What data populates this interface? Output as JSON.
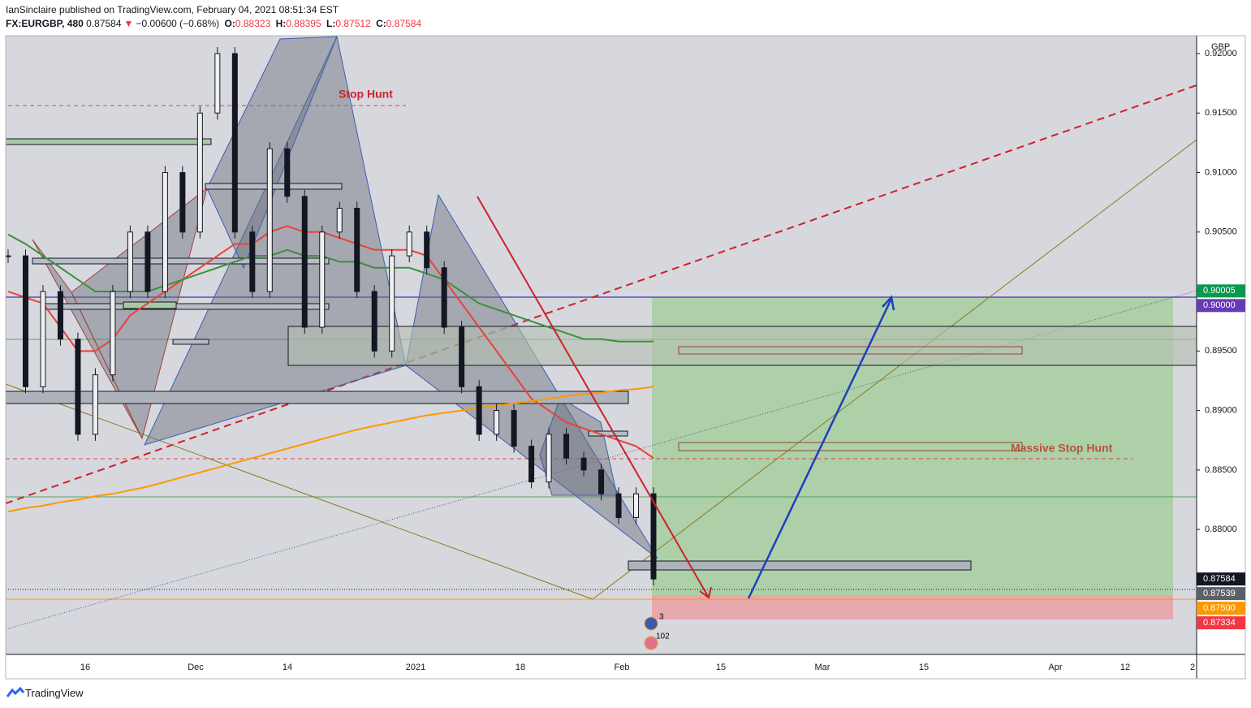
{
  "header": {
    "published": "IanSinclaire published on TradingView.com, February 04, 2021 08:51:34 EST",
    "symbol": "FX:EURGBP, 480",
    "last": "0.87584",
    "arrow": "▼",
    "change": "−0.00600 (−0.68%)",
    "o_label": "O:",
    "o": "0.88323",
    "h_label": "H:",
    "h": "0.88395",
    "l_label": "L:",
    "l": "0.87512",
    "c_label": "C:",
    "c": "0.87584"
  },
  "chart_data": {
    "type": "candlestick",
    "currency": "GBP",
    "ylim": [
      0.8695,
      0.9215
    ],
    "yticks": [
      {
        "value": 0.92,
        "label": "0.92000"
      },
      {
        "value": 0.915,
        "label": "0.91500"
      },
      {
        "value": 0.91,
        "label": "0.91000"
      },
      {
        "value": 0.905,
        "label": "0.90500"
      },
      {
        "value": 0.9,
        "label": "0.90000"
      },
      {
        "value": 0.895,
        "label": "0.89500"
      },
      {
        "value": 0.89,
        "label": "0.89000"
      },
      {
        "value": 0.885,
        "label": "0.88500"
      },
      {
        "value": 0.88,
        "label": "0.88000"
      }
    ],
    "xticks": [
      "16",
      "Dec",
      "14",
      "2021",
      "18",
      "Feb",
      "15",
      "Mar",
      "15",
      "Apr",
      "12",
      "2"
    ],
    "series": [
      {
        "name": "EURGBP close",
        "values": [
          0.903,
          0.892,
          0.9,
          0.896,
          0.888,
          0.893,
          0.9,
          0.905,
          0.9,
          0.91,
          0.905,
          0.915,
          0.92,
          0.905,
          0.9,
          0.912,
          0.908,
          0.897,
          0.905,
          0.907,
          0.9,
          0.895,
          0.903,
          0.905,
          0.902,
          0.897,
          0.892,
          0.888,
          0.89,
          0.887,
          0.884,
          0.888,
          0.886,
          0.885,
          0.883,
          0.881,
          0.883,
          0.87584
        ]
      },
      {
        "name": "MA fast",
        "color": "#e8423a",
        "values": [
          0.9,
          0.8995,
          0.899,
          0.897,
          0.895,
          0.895,
          0.896,
          0.898,
          0.899,
          0.9,
          0.901,
          0.902,
          0.903,
          0.904,
          0.904,
          0.905,
          0.9055,
          0.905,
          0.905,
          0.9045,
          0.904,
          0.9035,
          0.9035,
          0.9035,
          0.903,
          0.901,
          0.899,
          0.897,
          0.895,
          0.893,
          0.891,
          0.89,
          0.889,
          0.8885,
          0.888,
          0.8875,
          0.887,
          0.886
        ]
      },
      {
        "name": "MA mid",
        "color": "#3c8f3c",
        "values": [
          0.9048,
          0.904,
          0.903,
          0.902,
          0.901,
          0.9,
          0.9,
          0.9,
          0.9,
          0.9005,
          0.901,
          0.9015,
          0.902,
          0.9025,
          0.903,
          0.903,
          0.9035,
          0.903,
          0.903,
          0.9025,
          0.9025,
          0.902,
          0.902,
          0.902,
          0.9015,
          0.901,
          0.9,
          0.899,
          0.8985,
          0.898,
          0.8975,
          0.897,
          0.8965,
          0.896,
          0.896,
          0.8958,
          0.8958,
          0.8958
        ]
      },
      {
        "name": "MA slow",
        "color": "#ff9800",
        "values": [
          0.8815,
          0.8818,
          0.882,
          0.8823,
          0.8825,
          0.8828,
          0.883,
          0.8833,
          0.8836,
          0.884,
          0.8844,
          0.8848,
          0.8852,
          0.8856,
          0.886,
          0.8864,
          0.8868,
          0.8872,
          0.8876,
          0.888,
          0.8884,
          0.8887,
          0.889,
          0.8893,
          0.8896,
          0.8898,
          0.89,
          0.8902,
          0.8904,
          0.8906,
          0.8908,
          0.891,
          0.8912,
          0.8914,
          0.8915,
          0.8917,
          0.8918,
          0.892
        ]
      }
    ],
    "price_tags": [
      {
        "value": 0.90005,
        "label": "0.90005",
        "color": "#089950"
      },
      {
        "value": 0.9,
        "label": "0.90000",
        "color": "#673ab7"
      },
      {
        "value": 0.87584,
        "label": "0.87584",
        "color": "#131722"
      },
      {
        "value": 0.87539,
        "label": "0.87539",
        "color": "#5d606b"
      },
      {
        "value": 0.875,
        "label": "0.87500",
        "color": "#ff9800"
      },
      {
        "value": 0.87334,
        "label": "0.87334",
        "color": "#f23645"
      }
    ],
    "annotations": [
      "Stop Hunt",
      "Massive Stop Hunt"
    ],
    "events": [
      "3",
      "102"
    ]
  },
  "footer": {
    "brand": "TradingView"
  }
}
